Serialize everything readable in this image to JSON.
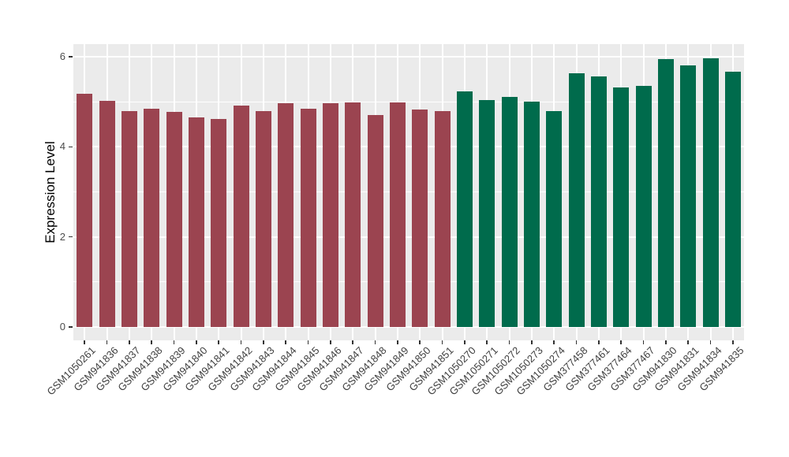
{
  "chart_data": {
    "type": "bar",
    "title": "",
    "xlabel": "",
    "ylabel": "Expression Level",
    "ylim": [
      0,
      6.28
    ],
    "yticks_major": [
      0,
      2,
      4,
      6
    ],
    "yticks_minor": [
      1,
      3,
      5
    ],
    "grid": true,
    "legend_position": "none",
    "panel_background": "#EBEBEB",
    "grid_color": "#FFFFFF",
    "categories": [
      "GSM1050261",
      "GSM941836",
      "GSM941837",
      "GSM941838",
      "GSM941839",
      "GSM941840",
      "GSM941841",
      "GSM941842",
      "GSM941843",
      "GSM941844",
      "GSM941845",
      "GSM941846",
      "GSM941847",
      "GSM941848",
      "GSM941849",
      "GSM941850",
      "GSM941851",
      "GSM1050270",
      "GSM1050271",
      "GSM1050272",
      "GSM1050273",
      "GSM1050274",
      "GSM377458",
      "GSM377461",
      "GSM377464",
      "GSM377467",
      "GSM941830",
      "GSM941831",
      "GSM941834",
      "GSM941835"
    ],
    "values": [
      5.18,
      5.02,
      4.79,
      4.85,
      4.78,
      4.65,
      4.62,
      4.91,
      4.79,
      4.96,
      4.85,
      4.96,
      4.98,
      4.7,
      4.99,
      4.83,
      4.8,
      5.23,
      5.04,
      5.11,
      5.01,
      4.79,
      5.64,
      5.56,
      5.32,
      5.35,
      5.94,
      5.81,
      5.97,
      5.67
    ],
    "groups": [
      "maroon",
      "maroon",
      "maroon",
      "maroon",
      "maroon",
      "maroon",
      "maroon",
      "maroon",
      "maroon",
      "maroon",
      "maroon",
      "maroon",
      "maroon",
      "maroon",
      "maroon",
      "maroon",
      "maroon",
      "green",
      "green",
      "green",
      "green",
      "green",
      "green",
      "green",
      "green",
      "green",
      "green",
      "green",
      "green",
      "green"
    ],
    "group_colors": {
      "maroon": "#9B4450",
      "green": "#006B4C"
    }
  }
}
